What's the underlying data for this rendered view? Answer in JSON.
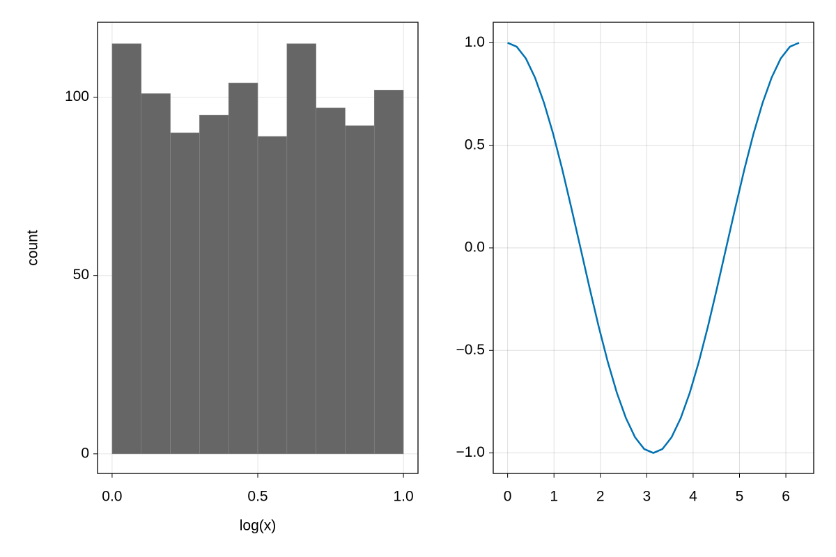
{
  "chart_data": [
    {
      "type": "histogram",
      "xlabel": "log(x)",
      "ylabel": "count",
      "bins": [
        0,
        0.1,
        0.2,
        0.3,
        0.4,
        0.5,
        0.6,
        0.7,
        0.8,
        0.9,
        1.0
      ],
      "counts": [
        115,
        101,
        90,
        95,
        104,
        89,
        115,
        97,
        92,
        102
      ],
      "color": "#666666",
      "xlim": [
        -0.05,
        1.05
      ],
      "ylim": [
        -5.5,
        121
      ],
      "xticks": [
        {
          "value": 0,
          "label": "0.0"
        },
        0.5,
        {
          "value": 1,
          "label": "1.0"
        }
      ],
      "yticks": [
        0,
        50,
        100
      ],
      "grid": true
    },
    {
      "type": "line",
      "x": [
        0,
        0.196,
        0.393,
        0.589,
        0.785,
        0.982,
        1.178,
        1.374,
        1.571,
        1.767,
        1.963,
        2.16,
        2.356,
        2.553,
        2.749,
        2.945,
        3.142,
        3.338,
        3.534,
        3.731,
        3.927,
        4.123,
        4.32,
        4.516,
        4.712,
        4.909,
        5.105,
        5.301,
        5.498,
        5.694,
        5.89,
        6.087,
        6.283
      ],
      "series": [
        {
          "color": "#0072b2",
          "values": [
            1,
            0.981,
            0.924,
            0.831,
            0.707,
            0.556,
            0.383,
            0.195,
            0,
            -0.195,
            -0.383,
            -0.556,
            -0.707,
            -0.831,
            -0.924,
            -0.981,
            -1,
            -0.981,
            -0.924,
            -0.831,
            -0.707,
            -0.556,
            -0.383,
            -0.195,
            0,
            0.195,
            0.383,
            0.556,
            0.707,
            0.831,
            0.924,
            0.981,
            1
          ]
        }
      ],
      "xlim": [
        -0.31,
        6.6
      ],
      "ylim": [
        -1.1,
        1.1
      ],
      "xticks": [
        0,
        1,
        2,
        3,
        4,
        5,
        6
      ],
      "yticks": [
        {
          "value": -1,
          "label": "−1.0"
        },
        {
          "value": -0.5,
          "label": "−0.5"
        },
        {
          "value": 0,
          "label": "0.0"
        },
        {
          "value": 0.5,
          "label": "0.5"
        },
        {
          "value": 1,
          "label": "1.0"
        }
      ],
      "grid": true
    }
  ]
}
